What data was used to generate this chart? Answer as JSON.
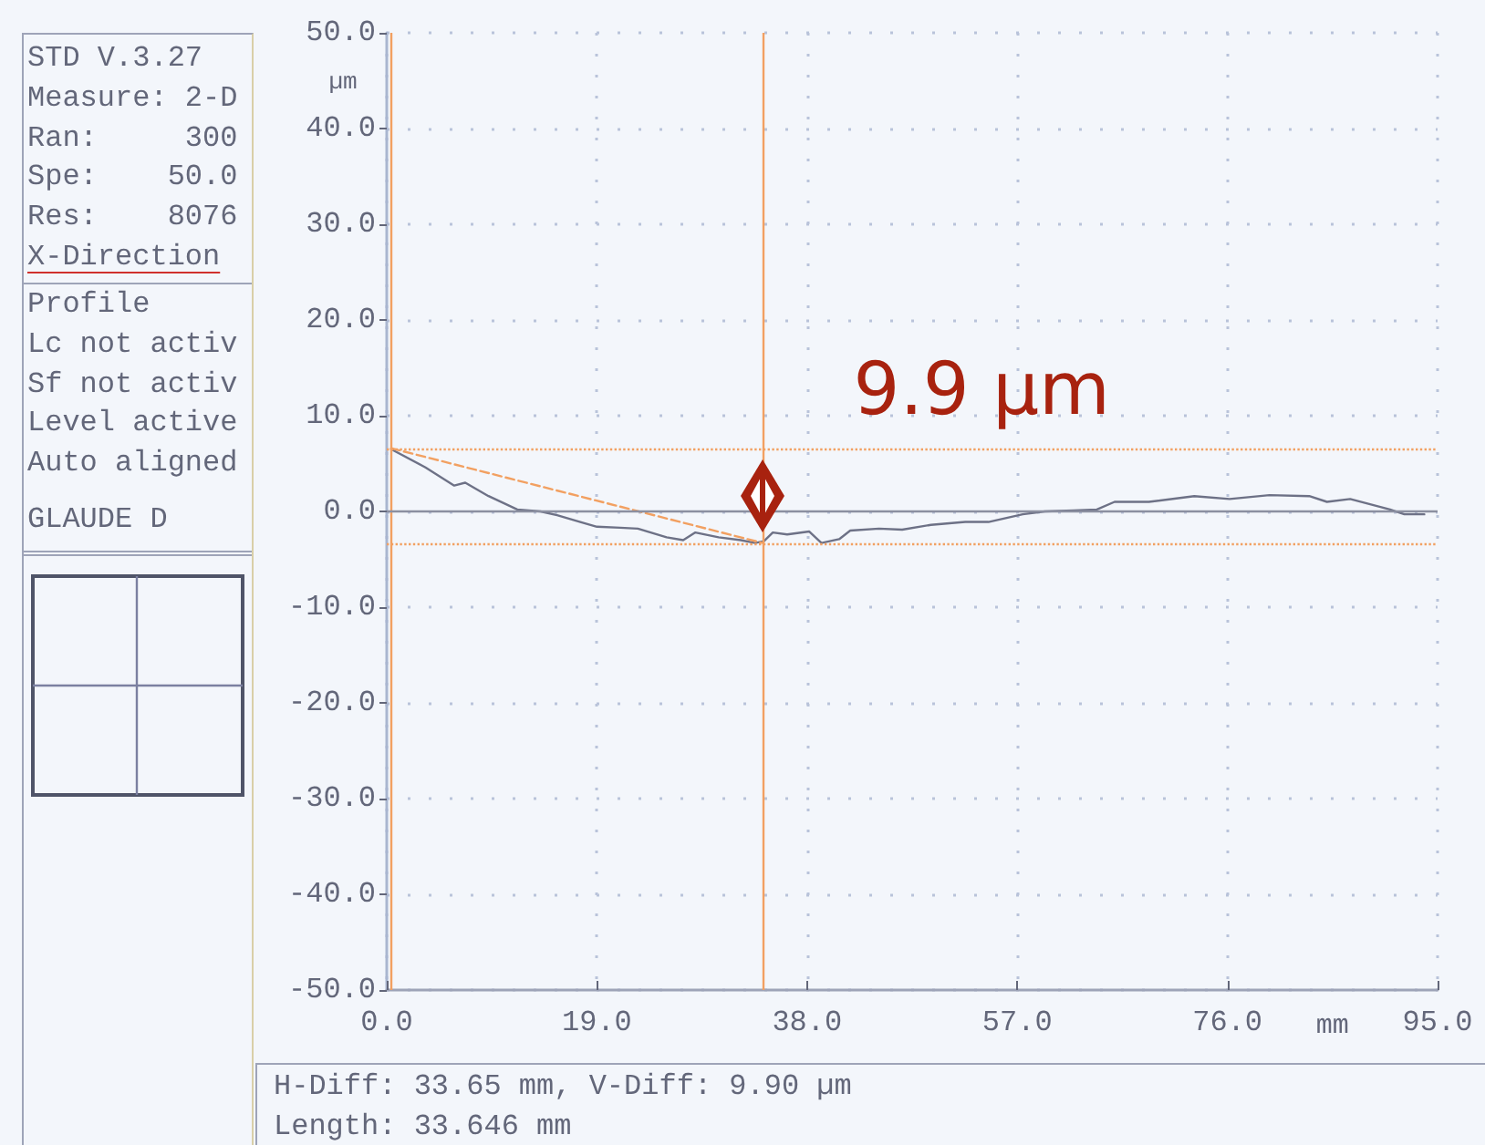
{
  "chart_data": {
    "type": "line",
    "xlabel": "mm",
    "ylabel": "µm",
    "xlim": [
      0,
      95
    ],
    "xticks": [
      {
        "value": 0,
        "label": "0.0"
      },
      {
        "value": 19,
        "label": "19.0"
      },
      {
        "value": 38,
        "label": "38.0"
      },
      {
        "value": 57,
        "label": "57.0"
      },
      {
        "value": 76,
        "label": "76.0"
      },
      {
        "value": 95,
        "label": "95.0"
      }
    ],
    "ylim": [
      -50,
      50
    ],
    "yticks": [
      {
        "value": -50,
        "label": "-50.0"
      },
      {
        "value": -40,
        "label": "-40.0"
      },
      {
        "value": -30,
        "label": "-30.0"
      },
      {
        "value": -20,
        "label": "-20.0"
      },
      {
        "value": -10,
        "label": "-10.0"
      },
      {
        "value": 0,
        "label": "0.0"
      },
      {
        "value": 10,
        "label": "10.0"
      },
      {
        "value": 20,
        "label": "20.0"
      },
      {
        "value": 30,
        "label": "30.0"
      },
      {
        "value": 40,
        "label": "40.0"
      },
      {
        "value": 50,
        "label": "50.0"
      }
    ],
    "grid": true,
    "marker": "none",
    "series": [
      {
        "x": [
          0.4,
          3.5,
          6.1,
          7.1,
          9.2,
          11.8,
          13.9,
          15.4,
          17.5,
          19.0,
          21.1,
          22.7,
          25.3,
          26.8,
          27.9,
          30.0,
          32.0,
          33.3,
          34.1,
          34.9,
          36.2,
          38.2,
          39.3,
          40.9,
          41.9,
          44.5,
          46.6,
          49.2,
          52.3,
          54.4,
          57.5,
          59.5,
          62.1,
          64.2,
          65.8,
          68.9,
          73.0,
          76.2,
          79.8,
          83.4,
          85.0,
          87.1,
          90.7,
          92.0,
          93.8
        ],
        "values": [
          6.5,
          4.6,
          2.7,
          3.0,
          1.6,
          0.2,
          0.0,
          -0.4,
          -1.1,
          -1.6,
          -1.7,
          -1.8,
          -2.7,
          -3.0,
          -2.2,
          -2.7,
          -3.0,
          -3.3,
          -3.1,
          -2.2,
          -2.4,
          -2.1,
          -3.3,
          -2.9,
          -2.0,
          -1.8,
          -1.9,
          -1.4,
          -1.1,
          -1.1,
          -0.3,
          0.0,
          0.1,
          0.2,
          1.0,
          1.0,
          1.6,
          1.3,
          1.7,
          1.6,
          1.0,
          1.3,
          0.2,
          -0.3,
          -0.3
        ],
        "color": "#6d7186"
      },
      {
        "x": [
          0.4,
          34.0
        ],
        "values": [
          6.6,
          -3.3
        ],
        "color": "#f2a061",
        "line_style": "dashed"
      }
    ],
    "ref_lines": [
      {
        "axis": "x",
        "value": 0.4,
        "color": "#f2a061"
      },
      {
        "axis": "x",
        "value": 34.0,
        "color": "#f2a061"
      },
      {
        "axis": "y",
        "value": 6.6,
        "color": "#f2a061",
        "line_style": "dotted"
      },
      {
        "axis": "y",
        "value": -3.3,
        "color": "#f2a061",
        "line_style": "dotted"
      },
      {
        "axis": "y",
        "value": 0,
        "color": "#8b8fa0"
      }
    ],
    "annotations": [
      "9.9 µm",
      "STD V.3.27",
      "Measure: 2-D",
      "Ran:     300",
      "Spe:    50.0",
      "Res:    8076",
      "X-Direction",
      "Profile",
      "Lc not activ",
      "Sf not activ",
      "Level active",
      "Auto aligned",
      "GLAUDE D",
      "H-Diff: 33.65 mm, V-Diff: 9.90 µm",
      "Length: 33.646 mm"
    ]
  }
}
